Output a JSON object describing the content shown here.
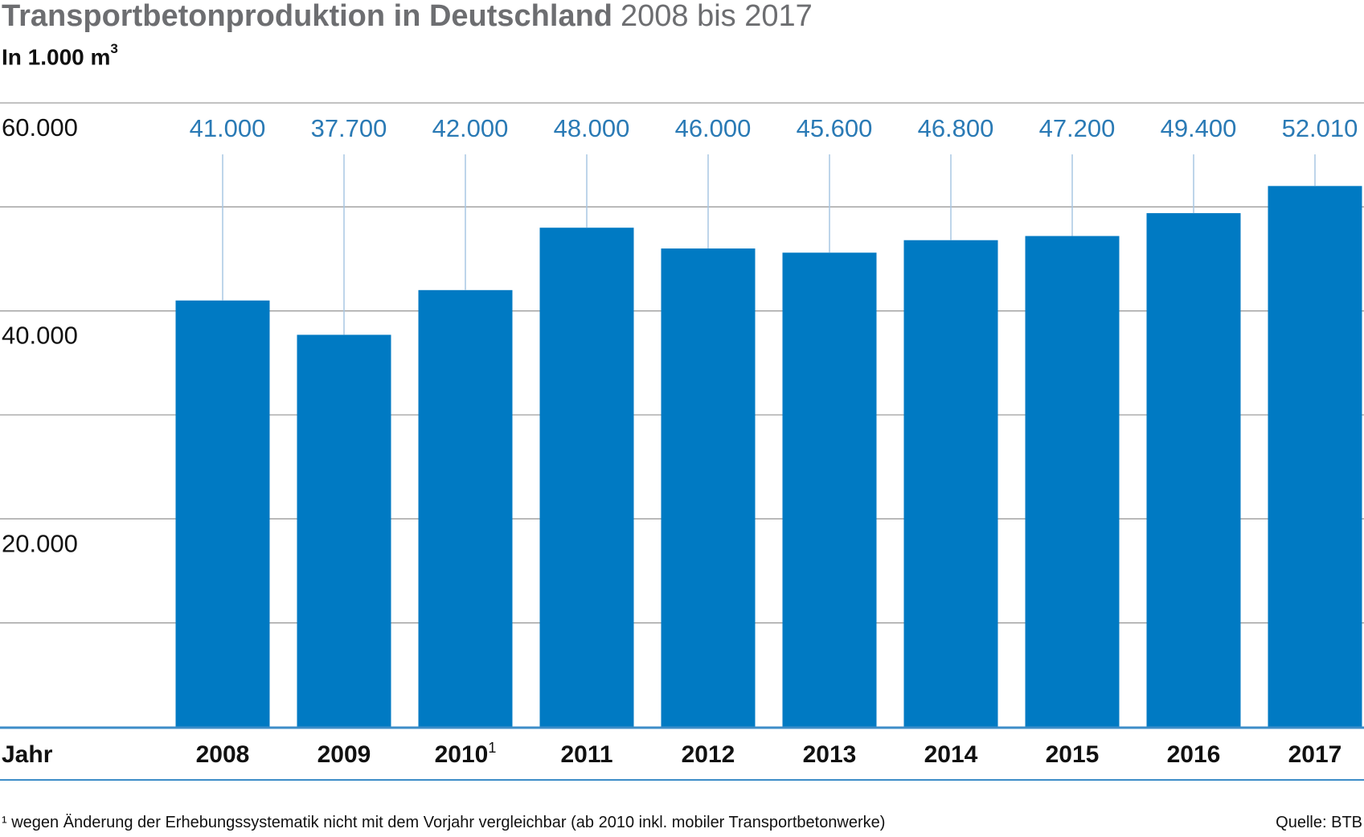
{
  "header": {
    "title_bold": "Transportbetonproduktion in Deutschland",
    "title_light": "2008 bis 2017",
    "unit_main": "In 1.000 m",
    "unit_sup": "3"
  },
  "footer": {
    "footnote": "¹ wegen Änderung der Erhebungssystematik nicht mit dem Vorjahr vergleichbar (ab 2010 inkl. mobiler Transportbetonwerke)",
    "source": "Quelle: BTB"
  },
  "colors": {
    "bar": "#007ac3",
    "value_label": "#2a7ab5",
    "leader": "#a9c7e3",
    "grid": "#9d9d9d",
    "axis_line": "#3d8dc8",
    "text": "#111111"
  },
  "chart_data": {
    "type": "bar",
    "xlabel": "Jahr",
    "ylabel": "In 1.000 m³",
    "ylim": [
      0,
      60000
    ],
    "yticks": [
      0,
      10000,
      20000,
      30000,
      40000,
      50000,
      60000
    ],
    "ytick_labels": [
      "",
      "",
      "20.000",
      "",
      "40.000",
      "",
      "60.000"
    ],
    "categories": [
      "2008",
      "2009",
      "2010",
      "2011",
      "2012",
      "2013",
      "2014",
      "2015",
      "2016",
      "2017"
    ],
    "category_superscripts": [
      "",
      "",
      "1",
      "",
      "",
      "",
      "",
      "",
      "",
      ""
    ],
    "values": [
      41000,
      37700,
      42000,
      48000,
      46000,
      45600,
      46800,
      47200,
      49400,
      52010
    ],
    "value_labels": [
      "41.000",
      "37.700",
      "42.000",
      "48.000",
      "46.000",
      "45.600",
      "46.800",
      "47.200",
      "49.400",
      "52.010"
    ],
    "grid": true
  }
}
